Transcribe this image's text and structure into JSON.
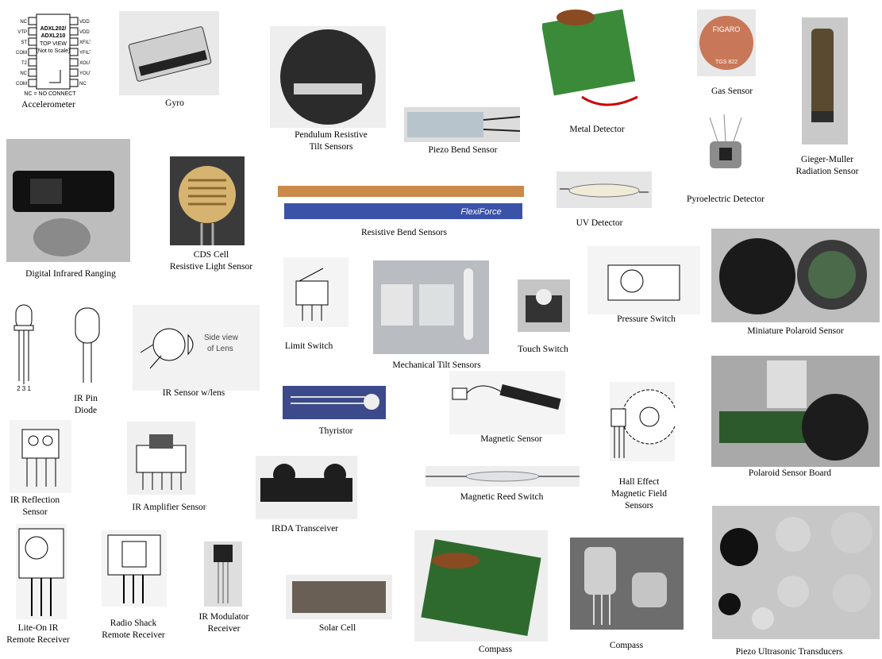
{
  "labels": {
    "accelerometer": "Accelerometer",
    "gyro": "Gyro",
    "pendulum_1": "Pendulum Resistive",
    "pendulum_2": "Tilt Sensors",
    "piezo_bend": "Piezo Bend Sensor",
    "metal_detector": "Metal Detector",
    "gas_sensor": "Gas Sensor",
    "pyroelectric": "Pyroelectric Detector",
    "geiger_1": "Gieger-Muller",
    "geiger_2": "Radiation Sensor",
    "infrared_ranging": "Digital Infrared Ranging",
    "cds_1": "CDS Cell",
    "cds_2": "Resistive Light Sensor",
    "resistive_bend": "Resistive Bend Sensors",
    "uv_detector": "UV Detector",
    "limit_switch": "Limit Switch",
    "mech_tilt": "Mechanical Tilt Sensors",
    "touch_switch": "Touch Switch",
    "pressure_switch": "Pressure Switch",
    "mini_polaroid": "Miniature Polaroid Sensor",
    "ir_pin_1": "IR Pin",
    "ir_pin_2": "Diode",
    "ir_lens": "IR Sensor w/lens",
    "thyristor": "Thyristor",
    "magnetic_sensor": "Magnetic Sensor",
    "hall_1": "Hall Effect",
    "hall_2": "Magnetic Field",
    "hall_3": "Sensors",
    "polaroid_board": "Polaroid Sensor Board",
    "ir_reflection_1": "IR Reflection",
    "ir_reflection_2": "Sensor",
    "ir_amplifier": "IR Amplifier Sensor",
    "irda": "IRDA Transceiver",
    "reed_switch": "Magnetic Reed Switch",
    "liteon_1": "Lite-On IR",
    "liteon_2": "Remote Receiver",
    "radioshack_1": "Radio Shack",
    "radioshack_2": "Remote Receiver",
    "ir_modulator_1": "IR Modulator",
    "ir_modulator_2": "Receiver",
    "solar_cell": "Solar Cell",
    "compass_board": "Compass",
    "compass_module": "Compass",
    "piezo_ultrasonic": "Piezo Ultrasonic Transducers"
  },
  "image_text": {
    "chip_line1": "ADXL202/",
    "chip_line2": "ADXL210",
    "chip_line3": "TOP VIEW",
    "chip_line4": "(Not to Scale)",
    "chip_footer": "NC = NO CONNECT",
    "chip_pins_left": [
      "NC",
      "VTP",
      "ST",
      "COM",
      "T2",
      "NC",
      "COM"
    ],
    "chip_pins_right": [
      "VDD",
      "VDD",
      "XFILT",
      "YFILT",
      "XOUT",
      "YOUT",
      "NC"
    ],
    "gas_brand": "FIGARO",
    "gas_model": "TGS 822",
    "flexiforce": "FlexiForce",
    "lens_side_1": "Side view",
    "lens_side_2": "of Lens",
    "pin_numbers": "2  3  1"
  }
}
